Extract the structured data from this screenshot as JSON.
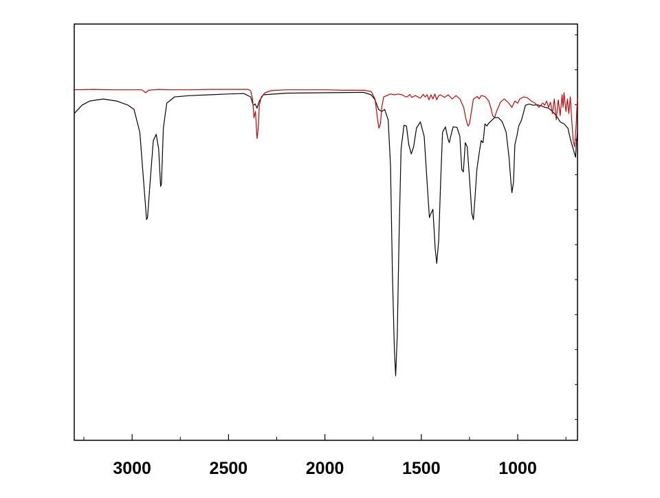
{
  "chart_data": {
    "type": "line",
    "title": "",
    "xlabel": "",
    "ylabel": "",
    "x_reversed": true,
    "xlim": [
      3300,
      690
    ],
    "ylim": [
      0,
      100
    ],
    "x_ticks": [
      3000,
      2500,
      2000,
      1500,
      1000
    ],
    "x_tick_labels": [
      "3000",
      "2500",
      "2000",
      "1500",
      "1000"
    ],
    "x_minor_ticks": [
      3250,
      2750,
      2250,
      1750,
      1250,
      750
    ],
    "y_tick_labels_shown": false,
    "grid": false,
    "legend": false,
    "colors": {
      "black_series": "#000000",
      "red_series": "#cc0000",
      "frame": "#000000",
      "background": "#ffffff"
    },
    "series": [
      {
        "color": "#000000",
        "points": [
          [
            3300,
            78.5
          ],
          [
            3260,
            80.5
          ],
          [
            3220,
            81.5
          ],
          [
            3150,
            82.0
          ],
          [
            3080,
            81.5
          ],
          [
            3020,
            80.5
          ],
          [
            2990,
            79.5
          ],
          [
            2960,
            74.0
          ],
          [
            2940,
            62.0
          ],
          [
            2925,
            53.0
          ],
          [
            2920,
            53.5
          ],
          [
            2905,
            63.0
          ],
          [
            2890,
            72.0
          ],
          [
            2875,
            73.5
          ],
          [
            2862,
            70.0
          ],
          [
            2852,
            61.0
          ],
          [
            2848,
            61.5
          ],
          [
            2838,
            75.0
          ],
          [
            2820,
            81.0
          ],
          [
            2780,
            82.5
          ],
          [
            2700,
            82.8
          ],
          [
            2600,
            83.0
          ],
          [
            2500,
            83.2
          ],
          [
            2420,
            83.3
          ],
          [
            2385,
            82.5
          ],
          [
            2372,
            80.5
          ],
          [
            2362,
            80.8
          ],
          [
            2352,
            79.8
          ],
          [
            2340,
            81.5
          ],
          [
            2320,
            83.0
          ],
          [
            2200,
            83.4
          ],
          [
            2000,
            83.5
          ],
          [
            1800,
            83.6
          ],
          [
            1760,
            83.0
          ],
          [
            1740,
            81.8
          ],
          [
            1722,
            79.5
          ],
          [
            1705,
            79.0
          ],
          [
            1690,
            79.5
          ],
          [
            1672,
            77.0
          ],
          [
            1660,
            66.0
          ],
          [
            1650,
            40.0
          ],
          [
            1640,
            22.0
          ],
          [
            1633,
            15.5
          ],
          [
            1625,
            25.0
          ],
          [
            1615,
            50.0
          ],
          [
            1605,
            70.0
          ],
          [
            1590,
            75.7
          ],
          [
            1577,
            75.5
          ],
          [
            1565,
            71.0
          ],
          [
            1552,
            68.8
          ],
          [
            1540,
            70.5
          ],
          [
            1525,
            75.0
          ],
          [
            1505,
            76.5
          ],
          [
            1485,
            73.0
          ],
          [
            1470,
            62.0
          ],
          [
            1458,
            53.5
          ],
          [
            1450,
            54.5
          ],
          [
            1440,
            55.5
          ],
          [
            1428,
            46.0
          ],
          [
            1420,
            42.5
          ],
          [
            1410,
            48.0
          ],
          [
            1400,
            62.0
          ],
          [
            1390,
            74.0
          ],
          [
            1375,
            75.3
          ],
          [
            1362,
            72.5
          ],
          [
            1355,
            71.5
          ],
          [
            1345,
            73.5
          ],
          [
            1335,
            75.3
          ],
          [
            1315,
            75.2
          ],
          [
            1300,
            73.0
          ],
          [
            1290,
            65.0
          ],
          [
            1282,
            64.5
          ],
          [
            1272,
            71.5
          ],
          [
            1262,
            70.5
          ],
          [
            1250,
            63.0
          ],
          [
            1238,
            54.5
          ],
          [
            1230,
            53.0
          ],
          [
            1222,
            58.0
          ],
          [
            1212,
            65.0
          ],
          [
            1200,
            69.0
          ],
          [
            1190,
            72.0
          ],
          [
            1180,
            71.5
          ],
          [
            1170,
            76.0
          ],
          [
            1160,
            75.5
          ],
          [
            1150,
            76.2
          ],
          [
            1120,
            77.5
          ],
          [
            1100,
            77.5
          ],
          [
            1080,
            76.5
          ],
          [
            1060,
            74.0
          ],
          [
            1045,
            68.0
          ],
          [
            1035,
            62.0
          ],
          [
            1030,
            59.5
          ],
          [
            1022,
            62.0
          ],
          [
            1015,
            71.0
          ],
          [
            1005,
            73.0
          ],
          [
            995,
            75.5
          ],
          [
            980,
            77.0
          ],
          [
            960,
            80.5
          ],
          [
            940,
            80.8
          ],
          [
            920,
            80.5
          ],
          [
            900,
            80.6
          ],
          [
            880,
            80.4
          ],
          [
            860,
            80.0
          ],
          [
            840,
            79.8
          ],
          [
            820,
            79.0
          ],
          [
            800,
            78.0
          ],
          [
            780,
            76.5
          ],
          [
            760,
            76.0
          ],
          [
            740,
            75.0
          ],
          [
            725,
            72.0
          ],
          [
            712,
            70.0
          ],
          [
            700,
            68.0
          ],
          [
            695,
            72.0
          ],
          [
            690,
            74.0
          ]
        ]
      },
      {
        "color": "#cc0000",
        "points": [
          [
            3300,
            84.2
          ],
          [
            3200,
            84.3
          ],
          [
            3100,
            84.2
          ],
          [
            3000,
            84.2
          ],
          [
            2950,
            84.2
          ],
          [
            2930,
            83.5
          ],
          [
            2915,
            84.1
          ],
          [
            2860,
            84.3
          ],
          [
            2800,
            84.2
          ],
          [
            2700,
            84.2
          ],
          [
            2600,
            84.3
          ],
          [
            2500,
            84.3
          ],
          [
            2400,
            84.3
          ],
          [
            2385,
            84.0
          ],
          [
            2375,
            82.0
          ],
          [
            2368,
            77.5
          ],
          [
            2360,
            79.0
          ],
          [
            2352,
            72.5
          ],
          [
            2346,
            75.0
          ],
          [
            2340,
            80.5
          ],
          [
            2330,
            82.5
          ],
          [
            2310,
            83.5
          ],
          [
            2280,
            84.0
          ],
          [
            2200,
            84.2
          ],
          [
            2100,
            84.2
          ],
          [
            2000,
            84.2
          ],
          [
            1900,
            84.1
          ],
          [
            1800,
            84.1
          ],
          [
            1760,
            83.8
          ],
          [
            1740,
            82.0
          ],
          [
            1728,
            77.5
          ],
          [
            1720,
            75.0
          ],
          [
            1712,
            76.0
          ],
          [
            1705,
            80.0
          ],
          [
            1695,
            82.5
          ],
          [
            1660,
            83.2
          ],
          [
            1640,
            83.0
          ],
          [
            1620,
            83.2
          ],
          [
            1600,
            83.0
          ],
          [
            1580,
            82.5
          ],
          [
            1570,
            82.6
          ],
          [
            1560,
            83.1
          ],
          [
            1550,
            82.4
          ],
          [
            1530,
            82.8
          ],
          [
            1505,
            82.2
          ],
          [
            1490,
            83.1
          ],
          [
            1480,
            82.5
          ],
          [
            1470,
            83.0
          ],
          [
            1460,
            81.8
          ],
          [
            1450,
            83.0
          ],
          [
            1440,
            82.0
          ],
          [
            1430,
            83.2
          ],
          [
            1420,
            81.8
          ],
          [
            1410,
            82.8
          ],
          [
            1400,
            83.0
          ],
          [
            1380,
            82.4
          ],
          [
            1360,
            83.0
          ],
          [
            1340,
            82.0
          ],
          [
            1320,
            82.8
          ],
          [
            1300,
            82.0
          ],
          [
            1280,
            80.0
          ],
          [
            1270,
            77.5
          ],
          [
            1258,
            75.5
          ],
          [
            1250,
            76.0
          ],
          [
            1240,
            79.0
          ],
          [
            1230,
            82.0
          ],
          [
            1210,
            82.6
          ],
          [
            1200,
            82.0
          ],
          [
            1190,
            82.8
          ],
          [
            1170,
            82.6
          ],
          [
            1150,
            81.5
          ],
          [
            1140,
            80.0
          ],
          [
            1130,
            78.0
          ],
          [
            1120,
            77.5
          ],
          [
            1110,
            79.0
          ],
          [
            1100,
            80.0
          ],
          [
            1090,
            81.2
          ],
          [
            1070,
            82.0
          ],
          [
            1050,
            81.2
          ],
          [
            1030,
            80.0
          ],
          [
            1015,
            81.5
          ],
          [
            1000,
            81.0
          ],
          [
            990,
            82.0
          ],
          [
            970,
            82.5
          ],
          [
            950,
            82.3
          ],
          [
            930,
            81.5
          ],
          [
            910,
            81.0
          ],
          [
            890,
            80.0
          ],
          [
            870,
            81.0
          ],
          [
            860,
            80.5
          ],
          [
            850,
            81.5
          ],
          [
            840,
            80.0
          ],
          [
            830,
            81.2
          ],
          [
            820,
            78.5
          ],
          [
            810,
            82.0
          ],
          [
            800,
            77.0
          ],
          [
            790,
            81.8
          ],
          [
            780,
            78.0
          ],
          [
            770,
            83.0
          ],
          [
            765,
            80.0
          ],
          [
            760,
            83.5
          ],
          [
            750,
            79.0
          ],
          [
            742,
            82.0
          ],
          [
            735,
            78.5
          ],
          [
            727,
            82.5
          ],
          [
            720,
            77.0
          ],
          [
            712,
            72.0
          ],
          [
            705,
            70.5
          ],
          [
            698,
            75.0
          ],
          [
            693,
            80.0
          ],
          [
            690,
            82.0
          ]
        ]
      }
    ]
  }
}
